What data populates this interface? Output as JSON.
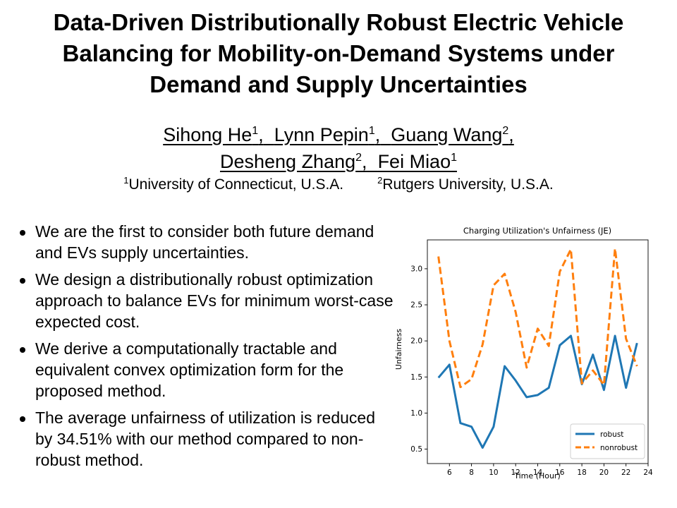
{
  "title": {
    "line1": "Data-Driven Distributionally Robust Electric Vehicle",
    "line2": "Balancing for Mobility-on-Demand Systems under",
    "line3": "Demand and Supply Uncertainties"
  },
  "authors": {
    "row1": [
      {
        "name": "Sihong He",
        "sup": "1",
        "sep": ","
      },
      {
        "name": "Lynn Pepin",
        "sup": "1",
        "sep": ","
      },
      {
        "name": "Guang Wang",
        "sup": "2",
        "sep": ","
      }
    ],
    "row2": [
      {
        "name": "Desheng Zhang",
        "sup": "2",
        "sep": ","
      },
      {
        "name": "Fei Miao",
        "sup": "1",
        "sep": ""
      }
    ]
  },
  "affiliations": [
    {
      "sup": "1",
      "name": "University of Connecticut, U.S.A."
    },
    {
      "sup": "2",
      "name": "Rutgers University, U.S.A."
    }
  ],
  "bullets": [
    "We are the first to consider both future demand and EVs supply uncertainties.",
    "We design a distributionally robust optimization approach to balance EVs for minimum worst-case expected cost.",
    "We derive a computationally tractable and equivalent convex optimization form for the proposed method.",
    "The average unfairness of utilization is reduced by 34.51% with our method compared to non-robust method."
  ],
  "chart_data": {
    "type": "line",
    "title": "Charging Utilization's Unfairness (JE)",
    "xlabel": "Time (Hour)",
    "ylabel": "Unfairness",
    "xlim": [
      4,
      24
    ],
    "ylim": [
      0.3,
      3.4
    ],
    "xticks": [
      6,
      8,
      10,
      12,
      14,
      16,
      18,
      20,
      22,
      24
    ],
    "yticks": [
      0.5,
      1.0,
      1.5,
      2.0,
      2.5,
      3.0
    ],
    "ytick_labels": [
      "0.5",
      "1.0",
      "1.5",
      "2.0",
      "2.5",
      "3.0"
    ],
    "x": [
      5,
      6,
      7,
      8,
      9,
      10,
      11,
      12,
      13,
      14,
      15,
      16,
      17,
      18,
      19,
      20,
      21,
      22,
      23
    ],
    "series": [
      {
        "name": "robust",
        "color": "#1f77b4",
        "dash": "solid",
        "values": [
          1.49,
          1.67,
          0.86,
          0.81,
          0.52,
          0.81,
          1.65,
          1.45,
          1.22,
          1.25,
          1.35,
          1.94,
          2.07,
          1.4,
          1.81,
          1.32,
          2.07,
          1.35,
          1.97
        ]
      },
      {
        "name": "nonrobust",
        "color": "#ff7f0e",
        "dash": "dashed",
        "values": [
          3.17,
          2.0,
          1.36,
          1.47,
          1.95,
          2.77,
          2.93,
          2.4,
          1.63,
          2.17,
          1.93,
          2.96,
          3.27,
          1.41,
          1.59,
          1.39,
          3.28,
          2.03,
          1.65
        ]
      }
    ],
    "legend_position": "lower-right",
    "grid": false
  }
}
